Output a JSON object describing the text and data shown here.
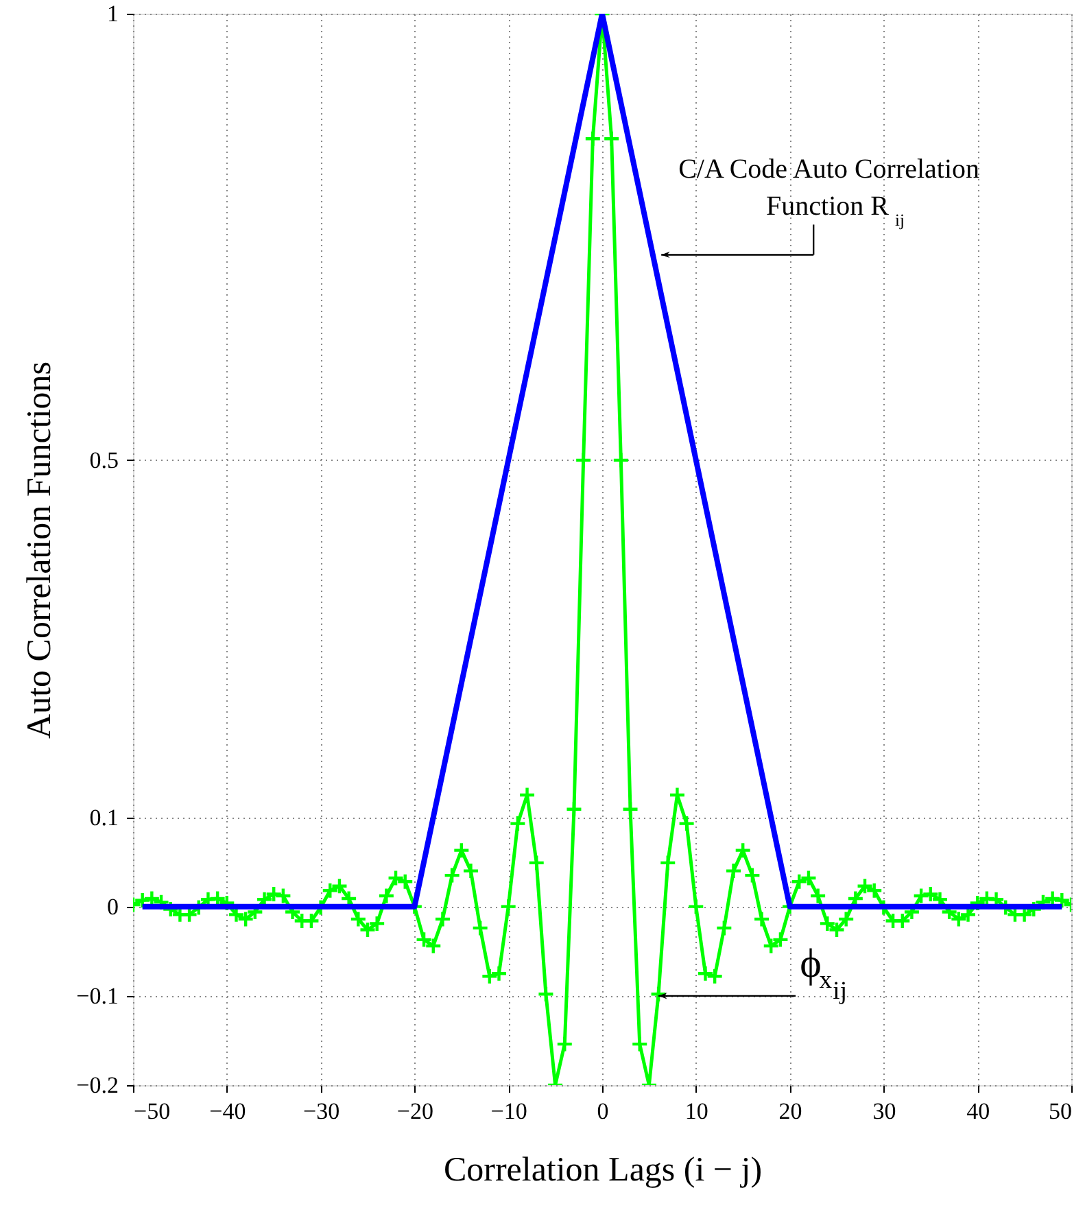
{
  "chart_data": {
    "type": "line",
    "xlabel": "Correlation Lags (i − j)",
    "ylabel": "Auto Correlation Functions",
    "xlim": [
      -50,
      50
    ],
    "xticks": [
      {
        "value": -50,
        "label": "−50"
      },
      {
        "value": -40,
        "label": "−40"
      },
      {
        "value": -30,
        "label": "−30"
      },
      {
        "value": -20,
        "label": "−20"
      },
      {
        "value": -10,
        "label": "−10"
      },
      0,
      10,
      20,
      30,
      40,
      50
    ],
    "ylim": [
      -0.2,
      1
    ],
    "yticks": [
      {
        "value": -0.2,
        "label": "−0.2"
      },
      {
        "value": -0.1,
        "label": "−0.1"
      },
      0,
      0.1,
      0.5,
      1
    ],
    "grid": true,
    "series": [
      {
        "color": "#00ff00",
        "marker": "cross",
        "x": [
          -50,
          -49,
          -48,
          -47,
          -46,
          -45,
          -44,
          -43,
          -42,
          -41,
          -40,
          -39,
          -38,
          -37,
          -36,
          -35,
          -34,
          -33,
          -32,
          -31,
          -30,
          -29,
          -28,
          -27,
          -26,
          -25,
          -24,
          -23,
          -22,
          -21,
          -20,
          -19,
          -18,
          -17,
          -16,
          -15,
          -14,
          -13,
          -12,
          -11,
          -10,
          -9,
          -8,
          -7,
          -6,
          -5,
          -4,
          -3,
          -2,
          -1,
          0,
          1,
          2,
          3,
          4,
          5,
          6,
          7,
          8,
          9,
          10,
          11,
          12,
          13,
          14,
          15,
          16,
          17,
          18,
          19,
          20,
          21,
          22,
          23,
          24,
          25,
          26,
          27,
          28,
          29,
          30,
          31,
          32,
          33,
          34,
          35,
          36,
          37,
          38,
          39,
          40,
          41,
          42,
          43,
          44,
          45,
          46,
          47,
          48,
          49,
          50
        ],
        "values": [
          0.002,
          0.007,
          0.009,
          0.005,
          -0.003,
          -0.009,
          -0.009,
          -0.001,
          0.008,
          0.009,
          0.004,
          -0.009,
          -0.014,
          -0.006,
          0.008,
          0.014,
          0.012,
          -0.006,
          -0.016,
          -0.016,
          -0.001,
          0.018,
          0.023,
          0.009,
          -0.014,
          -0.026,
          -0.019,
          0.012,
          0.032,
          0.028,
          0.0,
          -0.037,
          -0.044,
          -0.014,
          0.035,
          0.063,
          0.04,
          -0.024,
          -0.078,
          -0.075,
          0.0,
          0.093,
          0.125,
          0.049,
          -0.098,
          -0.2,
          -0.154,
          0.109,
          0.5,
          0.86,
          1,
          0.86,
          0.5,
          0.109,
          -0.154,
          -0.2,
          -0.098,
          0.049,
          0.125,
          0.093,
          0.0,
          -0.075,
          -0.078,
          -0.024,
          0.04,
          0.063,
          0.035,
          -0.014,
          -0.044,
          -0.037,
          0.0,
          0.028,
          0.032,
          0.012,
          -0.019,
          -0.026,
          -0.014,
          0.009,
          0.023,
          0.018,
          -0.001,
          -0.016,
          -0.016,
          -0.006,
          0.012,
          0.014,
          0.008,
          -0.006,
          -0.014,
          -0.009,
          0.004,
          0.009,
          0.008,
          -0.001,
          -0.009,
          -0.009,
          -0.003,
          0.005,
          0.009,
          0.007,
          0.002
        ]
      },
      {
        "color": "#0000ff",
        "marker": "none",
        "x": [
          -49,
          -20,
          0,
          20,
          49
        ],
        "values": [
          0,
          0,
          1,
          0,
          0
        ]
      }
    ],
    "annotations": [
      {
        "text": "C/A Code Auto Correlation Function R$_{ij}$",
        "x": 6.3,
        "y": 0.73
      },
      {
        "text": "ϕ$_{x}$$_{ij}$",
        "x": 6,
        "y": -0.1
      }
    ]
  }
}
